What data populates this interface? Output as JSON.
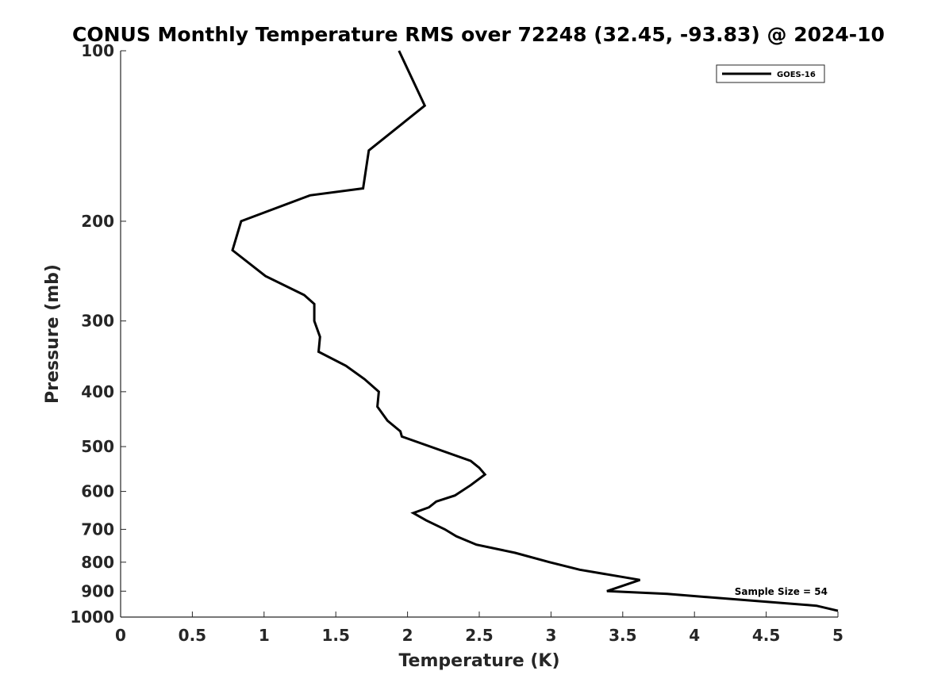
{
  "chart_data": {
    "type": "line",
    "title": "CONUS Monthly Temperature RMS over 72248 (32.45, -93.83) @ 2024-10",
    "xlabel": "Temperature (K)",
    "ylabel": "Pressure (mb)",
    "xlim": [
      0,
      5
    ],
    "ylim": [
      1000,
      100
    ],
    "y_scale": "log",
    "y_inverted": true,
    "grid": false,
    "legend_position": "top-right",
    "x_ticks": [
      "0",
      "0.5",
      "1",
      "1.5",
      "2",
      "2.5",
      "3",
      "3.5",
      "4",
      "4.5",
      "5"
    ],
    "y_ticks": [
      "100",
      "200",
      "300",
      "400",
      "500",
      "600",
      "700",
      "800",
      "900",
      "1000"
    ],
    "line_color": "#000000",
    "series": [
      {
        "name": "GOES-16",
        "points": [
          {
            "temp": 1.94,
            "pressure": 100
          },
          {
            "temp": 2.12,
            "pressure": 125
          },
          {
            "temp": 1.73,
            "pressure": 150
          },
          {
            "temp": 1.69,
            "pressure": 175
          },
          {
            "temp": 1.32,
            "pressure": 180
          },
          {
            "temp": 0.84,
            "pressure": 200
          },
          {
            "temp": 0.78,
            "pressure": 225
          },
          {
            "temp": 1.01,
            "pressure": 250
          },
          {
            "temp": 1.28,
            "pressure": 270
          },
          {
            "temp": 1.35,
            "pressure": 280
          },
          {
            "temp": 1.35,
            "pressure": 300
          },
          {
            "temp": 1.39,
            "pressure": 320
          },
          {
            "temp": 1.38,
            "pressure": 340
          },
          {
            "temp": 1.57,
            "pressure": 360
          },
          {
            "temp": 1.7,
            "pressure": 380
          },
          {
            "temp": 1.8,
            "pressure": 400
          },
          {
            "temp": 1.79,
            "pressure": 425
          },
          {
            "temp": 1.86,
            "pressure": 450
          },
          {
            "temp": 1.95,
            "pressure": 470
          },
          {
            "temp": 1.96,
            "pressure": 480
          },
          {
            "temp": 2.44,
            "pressure": 530
          },
          {
            "temp": 2.5,
            "pressure": 545
          },
          {
            "temp": 2.54,
            "pressure": 560
          },
          {
            "temp": 2.44,
            "pressure": 585
          },
          {
            "temp": 2.33,
            "pressure": 610
          },
          {
            "temp": 2.2,
            "pressure": 625
          },
          {
            "temp": 2.15,
            "pressure": 640
          },
          {
            "temp": 2.04,
            "pressure": 655
          },
          {
            "temp": 2.13,
            "pressure": 675
          },
          {
            "temp": 2.26,
            "pressure": 700
          },
          {
            "temp": 2.34,
            "pressure": 720
          },
          {
            "temp": 2.48,
            "pressure": 745
          },
          {
            "temp": 2.75,
            "pressure": 770
          },
          {
            "temp": 2.99,
            "pressure": 800
          },
          {
            "temp": 3.2,
            "pressure": 825
          },
          {
            "temp": 3.62,
            "pressure": 860
          },
          {
            "temp": 3.39,
            "pressure": 900
          },
          {
            "temp": 3.81,
            "pressure": 910
          },
          {
            "temp": 4.85,
            "pressure": 955
          },
          {
            "temp": 5.0,
            "pressure": 975
          }
        ]
      }
    ],
    "annotations": [
      {
        "text": "Sample Size = 54"
      }
    ]
  }
}
